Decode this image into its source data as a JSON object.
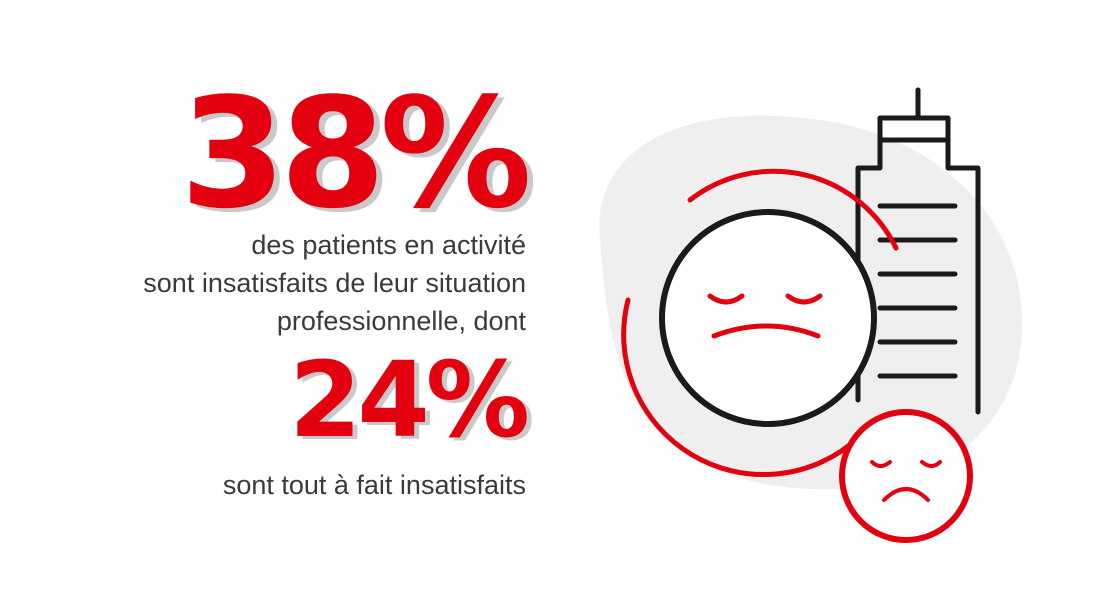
{
  "stats": {
    "primary": {
      "value": "38%",
      "lines": [
        "des patients en activité",
        "sont insatisfaits de leur situation",
        "professionnelle, dont"
      ]
    },
    "secondary": {
      "value": "24%",
      "lines": [
        "sont tout à fait insatisfaits"
      ]
    }
  },
  "colors": {
    "accent": "#e3000f",
    "text": "#3a3a3a",
    "shadow": "#c9c9c9",
    "blob": "#efefef",
    "line": "#1a1a1a"
  },
  "illustration": {
    "icons": [
      "building-icon",
      "sad-face-icon",
      "small-sad-face-icon",
      "background-blob"
    ]
  }
}
